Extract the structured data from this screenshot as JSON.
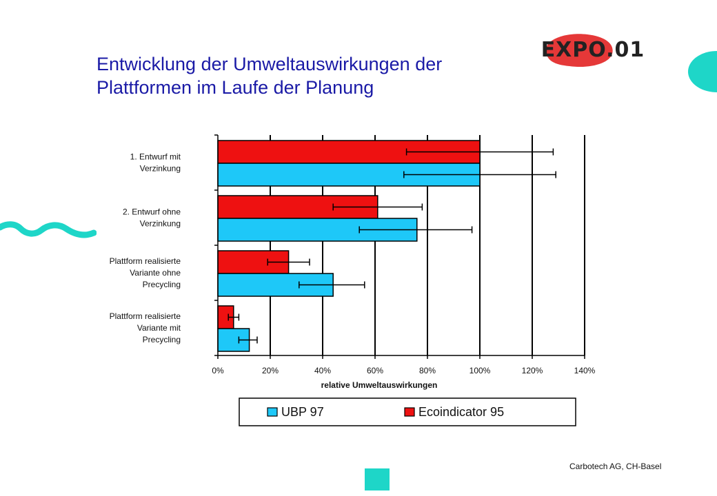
{
  "slide": {
    "title_line1": "Entwicklung der Umweltauswirkungen der",
    "title_line2": "Plattformen im Laufe der Planung",
    "logo_text": "EXPO.01",
    "credit": "Carbotech AG, CH-Basel"
  },
  "colors": {
    "title": "#1a1aa6",
    "ubp": "#1ec8f8",
    "eco": "#ee1111",
    "accent_teal": "#1ed6c8",
    "logo_blob": "#e53838"
  },
  "icons": {
    "logo": "expo-logo-icon",
    "right_decoration": "teal-arc-icon",
    "left_decoration": "teal-squiggle-icon",
    "bottom_decoration": "teal-square-icon"
  },
  "chart_data": {
    "type": "bar",
    "orientation": "horizontal",
    "title": "",
    "xlabel": "relative Umweltauswirkungen",
    "ylabel": "",
    "xlim": [
      0,
      140
    ],
    "xticks": [
      0,
      20,
      40,
      60,
      80,
      100,
      120,
      140
    ],
    "tick_suffix": "%",
    "grid": true,
    "categories": [
      [
        "1. Entwurf mit",
        "Verzinkung"
      ],
      [
        "2. Entwurf ohne",
        "Verzinkung"
      ],
      [
        "Plattform realisierte",
        "Variante ohne",
        "Precycling"
      ],
      [
        "Plattform realisierte",
        "Variante mit",
        "Precycling"
      ]
    ],
    "series": [
      {
        "name": "Ecoindicator 95",
        "color": "#ee1111",
        "values": [
          100,
          61,
          27,
          6
        ],
        "err_low": [
          72,
          44,
          19,
          4
        ],
        "err_high": [
          128,
          78,
          35,
          8
        ]
      },
      {
        "name": "UBP 97",
        "color": "#1ec8f8",
        "values": [
          100,
          76,
          44,
          12
        ],
        "err_low": [
          71,
          54,
          31,
          8
        ],
        "err_high": [
          129,
          97,
          56,
          15
        ]
      }
    ],
    "legend": {
      "position": "bottom",
      "order": [
        "UBP 97",
        "Ecoindicator 95"
      ]
    }
  }
}
